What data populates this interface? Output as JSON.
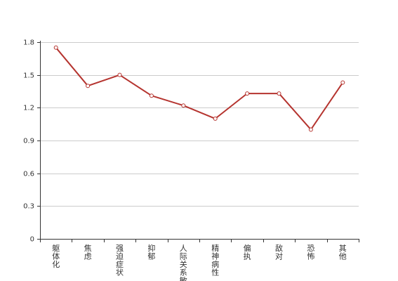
{
  "chart_data": {
    "type": "line",
    "title": "",
    "xlabel": "",
    "ylabel": "",
    "categories": [
      "躯体化",
      "焦虑",
      "强迫症状",
      "抑郁",
      "人际关系敏感",
      "精神病性",
      "偏执",
      "敌对",
      "恐怖",
      "其他"
    ],
    "series": [
      {
        "values": [
          1.75,
          1.4,
          1.5,
          1.31,
          1.22,
          1.1,
          1.33,
          1.33,
          1.0,
          1.43
        ]
      }
    ],
    "ylim": [
      0,
      1.8
    ],
    "yticks": [
      "0",
      "0.3",
      "0.6",
      "0.9",
      "1.2",
      "1.5",
      "1.8"
    ],
    "grid": true,
    "legend": "none",
    "colors": {
      "series": "#b5342f",
      "grid": "#cccccc",
      "axis": "#333333"
    }
  }
}
